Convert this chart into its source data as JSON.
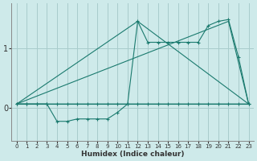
{
  "xlabel": "Humidex (Indice chaleur)",
  "bg_color": "#ceeaea",
  "line_color": "#1a7a6e",
  "grid_color": "#a8cccc",
  "x_ticks": [
    0,
    1,
    2,
    3,
    4,
    5,
    6,
    7,
    8,
    9,
    10,
    11,
    12,
    13,
    14,
    15,
    16,
    17,
    18,
    19,
    20,
    21,
    22,
    23
  ],
  "y_ticks": [
    0,
    1
  ],
  "xlim": [
    -0.5,
    23.5
  ],
  "ylim": [
    -0.55,
    1.75
  ],
  "series1_x": [
    0,
    1,
    2,
    3,
    4,
    5,
    6,
    7,
    8,
    9,
    10,
    11,
    12,
    13,
    14,
    15,
    16,
    17,
    18,
    19,
    20,
    21,
    22,
    23
  ],
  "series1_y": [
    0.07,
    0.07,
    0.07,
    0.07,
    0.07,
    0.07,
    0.07,
    0.07,
    0.07,
    0.07,
    0.07,
    0.07,
    1.45,
    1.1,
    1.1,
    1.1,
    1.1,
    1.1,
    1.1,
    1.38,
    1.45,
    1.48,
    0.85,
    0.07
  ],
  "series2_x": [
    0,
    1,
    2,
    3,
    4,
    5,
    6,
    7,
    8,
    9,
    10,
    11,
    12,
    13,
    14,
    15,
    16,
    17,
    18,
    19,
    20,
    21,
    22,
    23
  ],
  "series2_y": [
    0.07,
    0.07,
    0.07,
    0.07,
    -0.22,
    -0.22,
    -0.18,
    -0.18,
    -0.18,
    -0.18,
    -0.07,
    0.07,
    0.07,
    0.07,
    0.07,
    0.07,
    0.07,
    0.07,
    0.07,
    0.07,
    0.07,
    0.07,
    0.07,
    0.07
  ],
  "env_line1_x": [
    0,
    23
  ],
  "env_line1_y": [
    0.07,
    0.07
  ],
  "env_line2_x": [
    0,
    21,
    23
  ],
  "env_line2_y": [
    0.07,
    1.45,
    0.07
  ],
  "env_line3_x": [
    0,
    12,
    23
  ],
  "env_line3_y": [
    0.07,
    1.45,
    0.07
  ]
}
